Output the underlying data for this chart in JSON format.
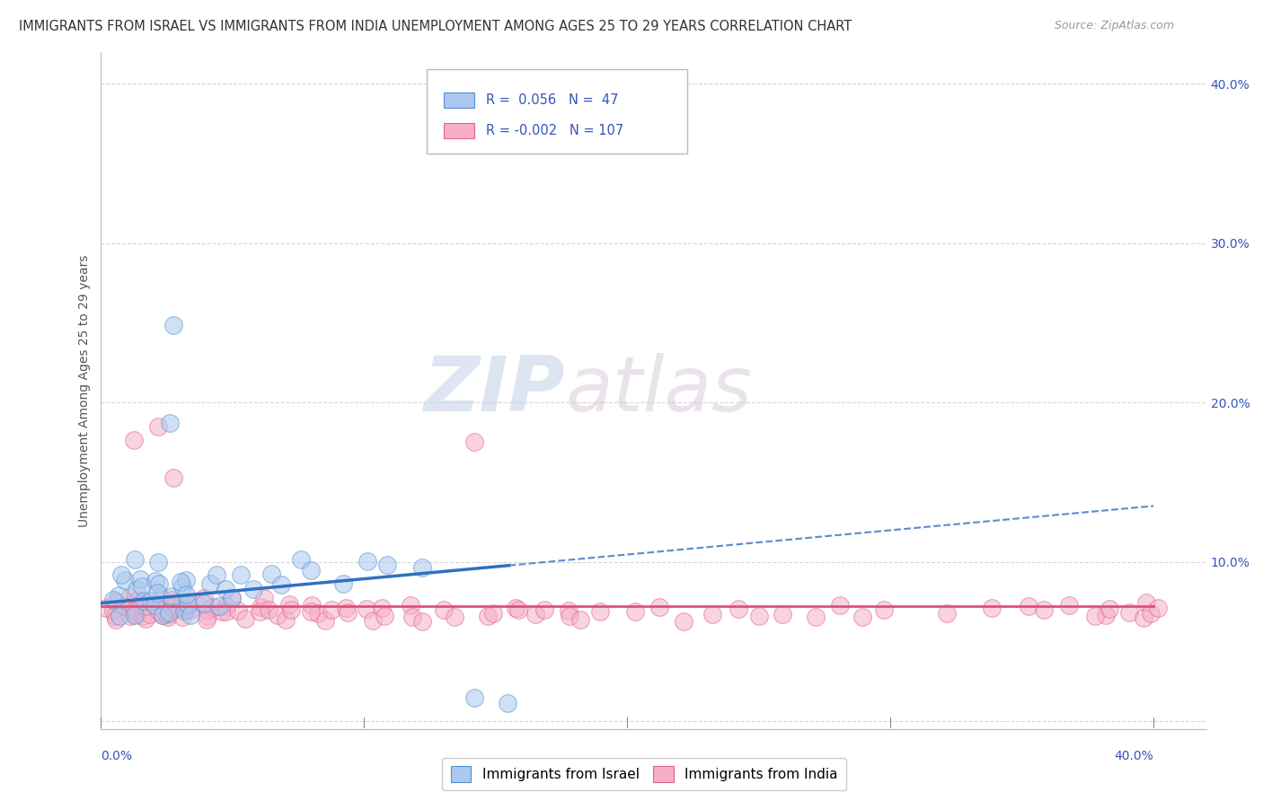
{
  "title": "IMMIGRANTS FROM ISRAEL VS IMMIGRANTS FROM INDIA UNEMPLOYMENT AMONG AGES 25 TO 29 YEARS CORRELATION CHART",
  "source": "Source: ZipAtlas.com",
  "ylabel": "Unemployment Among Ages 25 to 29 years",
  "xlim": [
    0.0,
    0.42
  ],
  "ylim": [
    -0.005,
    0.42
  ],
  "israel_R": 0.056,
  "israel_N": 47,
  "india_R": -0.002,
  "india_N": 107,
  "israel_color": "#aac8f0",
  "israel_edge": "#5090d0",
  "india_color": "#f5b0c8",
  "india_edge": "#e06090",
  "israel_line_color": "#3070c0",
  "india_line_color": "#e0507a",
  "legend_text_color": "#3355bb",
  "title_color": "#333333",
  "grid_color": "#cccccc",
  "watermark_zip": "ZIP",
  "watermark_atlas": "atlas",
  "israel_scatter_x": [
    0.005,
    0.005,
    0.005,
    0.008,
    0.01,
    0.01,
    0.012,
    0.013,
    0.015,
    0.016,
    0.017,
    0.018,
    0.018,
    0.02,
    0.022,
    0.022,
    0.023,
    0.024,
    0.025,
    0.025,
    0.026,
    0.027,
    0.028,
    0.03,
    0.03,
    0.032,
    0.033,
    0.035,
    0.036,
    0.038,
    0.04,
    0.042,
    0.045,
    0.048,
    0.05,
    0.055,
    0.06,
    0.065,
    0.07,
    0.075,
    0.08,
    0.09,
    0.1,
    0.11,
    0.12,
    0.14,
    0.155
  ],
  "israel_scatter_y": [
    0.08,
    0.075,
    0.068,
    0.09,
    0.095,
    0.065,
    0.082,
    0.088,
    0.1,
    0.085,
    0.075,
    0.09,
    0.078,
    0.085,
    0.1,
    0.072,
    0.065,
    0.08,
    0.078,
    0.068,
    0.25,
    0.19,
    0.085,
    0.09,
    0.07,
    0.085,
    0.075,
    0.082,
    0.068,
    0.075,
    0.085,
    0.072,
    0.09,
    0.082,
    0.078,
    0.09,
    0.085,
    0.095,
    0.088,
    0.1,
    0.095,
    0.088,
    0.1,
    0.1,
    0.095,
    0.015,
    0.012
  ],
  "india_scatter_x": [
    0.003,
    0.005,
    0.006,
    0.007,
    0.008,
    0.008,
    0.009,
    0.01,
    0.01,
    0.011,
    0.012,
    0.013,
    0.013,
    0.014,
    0.015,
    0.015,
    0.016,
    0.017,
    0.018,
    0.018,
    0.019,
    0.02,
    0.02,
    0.022,
    0.023,
    0.025,
    0.025,
    0.026,
    0.027,
    0.028,
    0.03,
    0.03,
    0.032,
    0.033,
    0.035,
    0.035,
    0.036,
    0.038,
    0.04,
    0.04,
    0.042,
    0.043,
    0.045,
    0.046,
    0.048,
    0.05,
    0.052,
    0.055,
    0.058,
    0.06,
    0.062,
    0.065,
    0.068,
    0.07,
    0.072,
    0.075,
    0.078,
    0.08,
    0.082,
    0.085,
    0.09,
    0.092,
    0.095,
    0.1,
    0.102,
    0.105,
    0.11,
    0.115,
    0.12,
    0.125,
    0.13,
    0.135,
    0.14,
    0.145,
    0.15,
    0.155,
    0.16,
    0.165,
    0.17,
    0.175,
    0.18,
    0.185,
    0.19,
    0.2,
    0.21,
    0.22,
    0.23,
    0.24,
    0.25,
    0.26,
    0.27,
    0.28,
    0.29,
    0.3,
    0.32,
    0.34,
    0.35,
    0.36,
    0.37,
    0.38,
    0.38,
    0.385,
    0.39,
    0.395,
    0.398,
    0.4,
    0.4
  ],
  "india_scatter_y": [
    0.068,
    0.075,
    0.068,
    0.072,
    0.065,
    0.08,
    0.07,
    0.068,
    0.072,
    0.075,
    0.068,
    0.072,
    0.065,
    0.175,
    0.068,
    0.075,
    0.068,
    0.07,
    0.065,
    0.068,
    0.072,
    0.068,
    0.182,
    0.068,
    0.075,
    0.07,
    0.065,
    0.075,
    0.07,
    0.155,
    0.072,
    0.068,
    0.065,
    0.072,
    0.068,
    0.075,
    0.068,
    0.072,
    0.068,
    0.075,
    0.07,
    0.065,
    0.072,
    0.068,
    0.075,
    0.068,
    0.07,
    0.065,
    0.072,
    0.068,
    0.075,
    0.07,
    0.068,
    0.065,
    0.072,
    0.068,
    0.075,
    0.07,
    0.068,
    0.065,
    0.068,
    0.072,
    0.07,
    0.068,
    0.065,
    0.072,
    0.068,
    0.075,
    0.068,
    0.065,
    0.072,
    0.068,
    0.175,
    0.065,
    0.068,
    0.072,
    0.07,
    0.065,
    0.068,
    0.072,
    0.068,
    0.065,
    0.07,
    0.068,
    0.072,
    0.065,
    0.068,
    0.07,
    0.068,
    0.065,
    0.068,
    0.07,
    0.068,
    0.068,
    0.065,
    0.068,
    0.07,
    0.068,
    0.072,
    0.065,
    0.068,
    0.07,
    0.068,
    0.072,
    0.065,
    0.068,
    0.07
  ],
  "israel_trendline_y0": 0.074,
  "israel_trendline_y1": 0.135,
  "india_trendline_y0": 0.072,
  "india_trendline_y1": 0.072,
  "ytick_vals": [
    0.0,
    0.1,
    0.2,
    0.3,
    0.4
  ],
  "ytick_labels": [
    "",
    "10.0%",
    "20.0%",
    "30.0%",
    "40.0%"
  ]
}
